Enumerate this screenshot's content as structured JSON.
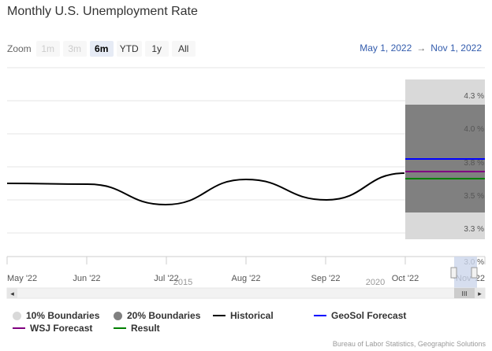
{
  "title": "Monthly U.S. Unemployment Rate",
  "zoom": {
    "label": "Zoom",
    "buttons": [
      {
        "label": "1m",
        "state": "disabled"
      },
      {
        "label": "3m",
        "state": "disabled"
      },
      {
        "label": "6m",
        "state": "selected"
      },
      {
        "label": "YTD",
        "state": "normal"
      },
      {
        "label": "1y",
        "state": "normal"
      },
      {
        "label": "All",
        "state": "normal"
      }
    ]
  },
  "date_range": {
    "from": "May 1, 2022",
    "arrow": "→",
    "to": "Nov 1, 2022"
  },
  "navigator": {
    "labels": [
      "2015",
      "2020"
    ],
    "scroll_left_glyph": "◂",
    "scroll_right_glyph": "▸",
    "grip_glyph": "III"
  },
  "chart_data": {
    "type": "line",
    "title": "Monthly U.S. Unemployment Rate",
    "x_ticks": [
      "May '22",
      "Jun '22",
      "Jul '22",
      "Aug '22",
      "Sep '22",
      "Oct '22",
      "Nov '22"
    ],
    "y_ticks": [
      "4.3 %",
      "4.0 %",
      "3.8 %",
      "3.5 %",
      "3.3 %",
      "3.0 %"
    ],
    "y_tick_values": [
      4.3,
      4.05,
      3.8,
      3.55,
      3.3,
      3.05
    ],
    "ylim": [
      3.05,
      4.3
    ],
    "boundaries_10": [
      3.3,
      4.3
    ],
    "boundaries_20": [
      3.45,
      4.05
    ],
    "historical": {
      "x": [
        "2022-05-01",
        "2022-06-01",
        "2022-07-01",
        "2022-08-01",
        "2022-09-01",
        "2022-10-01"
      ],
      "y": [
        3.6,
        3.6,
        3.5,
        3.6,
        3.5,
        3.7
      ]
    },
    "forecasts": {
      "geosol": 3.72,
      "wsj": 3.67,
      "result": 3.62
    },
    "colors": {
      "historical": "#000000",
      "geosol": "#0000ff",
      "wsj": "#800080",
      "result": "#008000",
      "boundary10": "#d9d9d9",
      "boundary20": "#808080"
    },
    "legend": [
      "10% Boundaries",
      "20% Boundaries",
      "Historical",
      "GeoSol Forecast",
      "WSJ Forecast",
      "Result"
    ],
    "grid": true,
    "legend_position": "bottom"
  },
  "credits": "Bureau of Labor Statistics, Geographic Solutions"
}
